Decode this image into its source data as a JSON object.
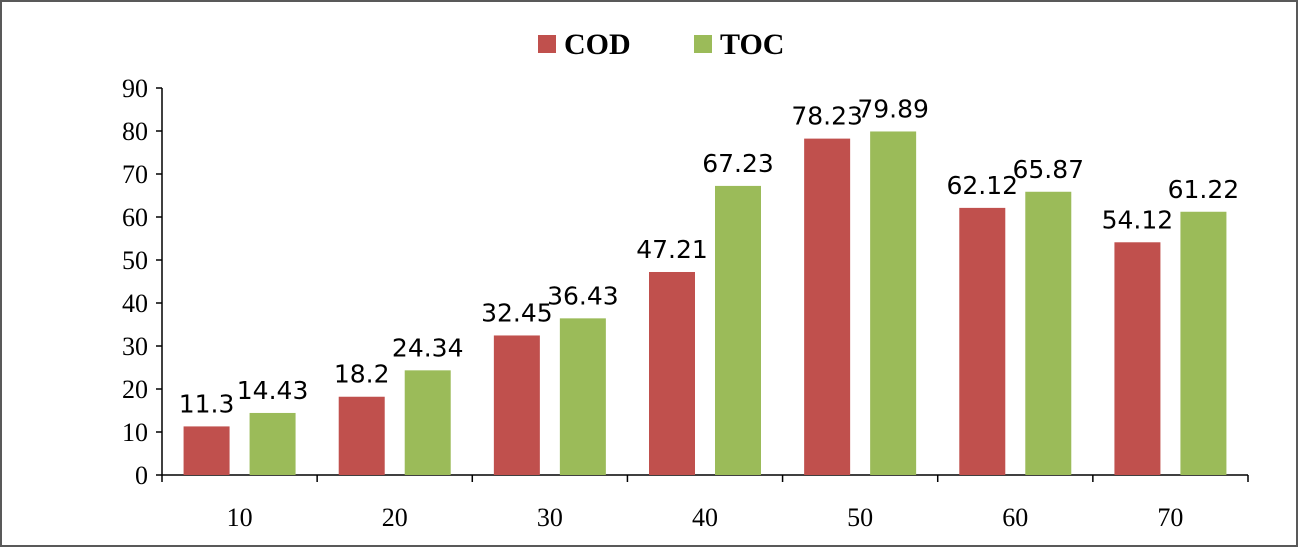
{
  "chart_data": {
    "type": "bar",
    "categories": [
      "10",
      "20",
      "30",
      "40",
      "50",
      "60",
      "70"
    ],
    "series": [
      {
        "name": "COD",
        "color": "#c0504d",
        "values": [
          11.3,
          18.2,
          32.45,
          47.21,
          78.23,
          62.12,
          54.12
        ],
        "labels": [
          "11.3",
          "18.2",
          "32.45",
          "47.21",
          "78.23",
          "62.12",
          "54.12"
        ]
      },
      {
        "name": "TOC",
        "color": "#9bbb59",
        "values": [
          14.43,
          24.34,
          36.43,
          67.23,
          79.89,
          65.87,
          61.22
        ],
        "labels": [
          "14.43",
          "24.34",
          "36.43",
          "67.23",
          "79.89",
          "65.87",
          "61.22"
        ]
      }
    ],
    "ylim": [
      0,
      90
    ],
    "yticks": [
      "0",
      "10",
      "20",
      "30",
      "40",
      "50",
      "60",
      "70",
      "80",
      "90"
    ],
    "title": "",
    "xlabel": "",
    "ylabel": "",
    "legend_position": "top-center",
    "grid": false
  }
}
